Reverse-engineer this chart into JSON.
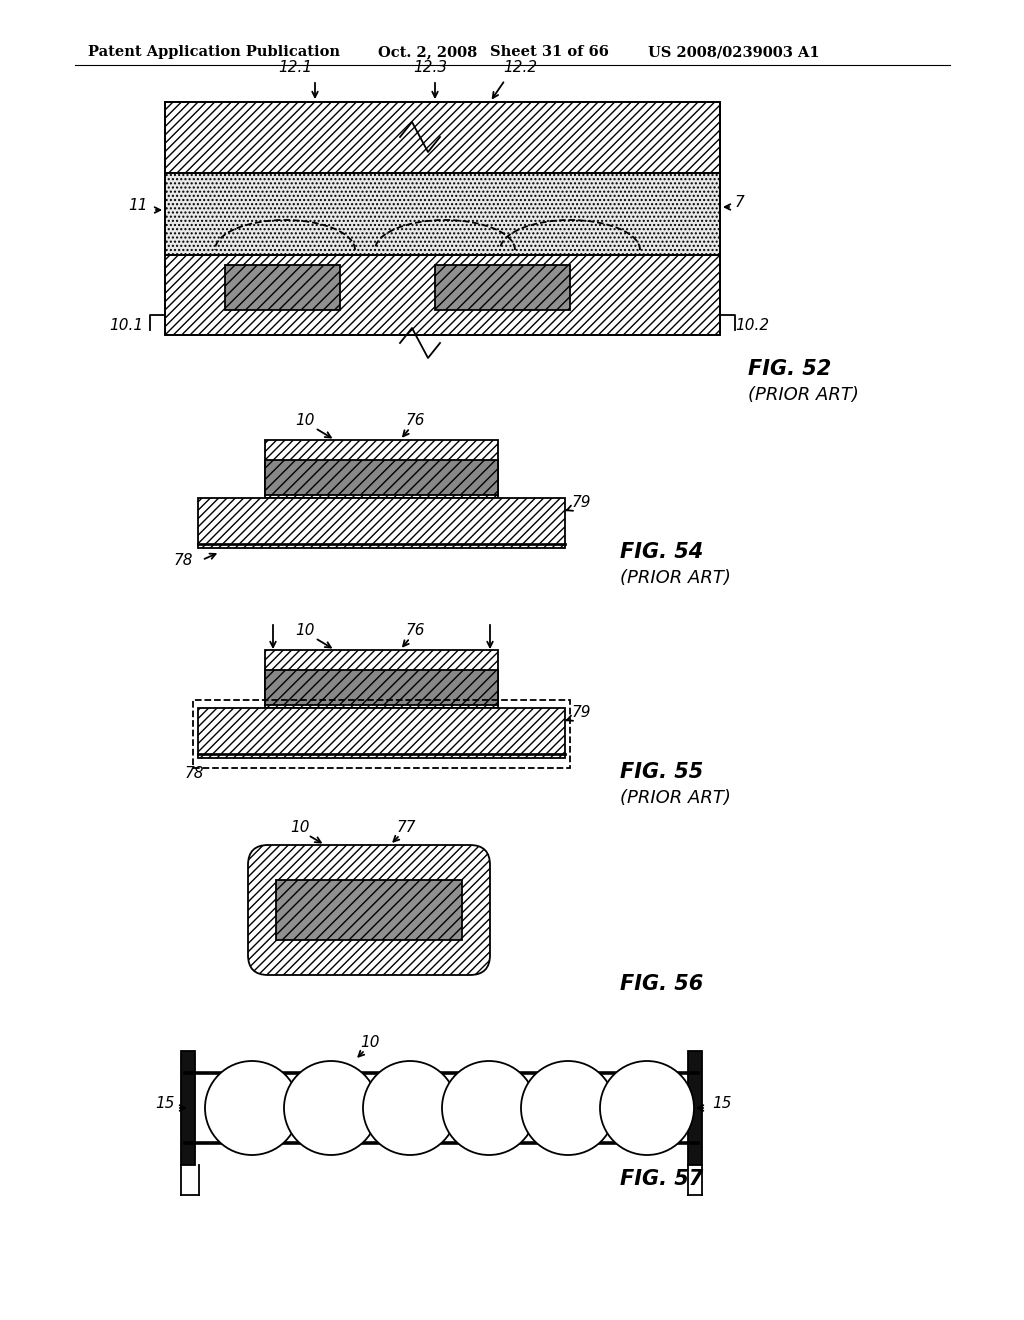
{
  "bg_color": "#ffffff",
  "header_text": "Patent Application Publication",
  "header_date": "Oct. 2, 2008",
  "header_sheet": "Sheet 31 of 66",
  "header_patent": "US 2008/0239003 A1",
  "fig52_label": "FIG. 52",
  "fig52_note": "(PRIOR ART)",
  "fig54_label": "FIG. 54",
  "fig54_note": "(PRIOR ART)",
  "fig55_label": "FIG. 55",
  "fig55_note": "(PRIOR ART)",
  "fig56_label": "FIG. 56",
  "fig57_label": "FIG. 57",
  "line_color": "#000000"
}
